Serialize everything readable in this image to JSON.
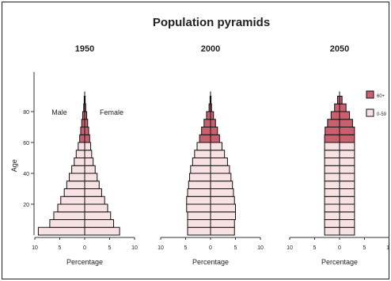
{
  "chart_data": {
    "type": "bar",
    "title": "Population pyramids",
    "ylabel": "Age",
    "age_ticks": [
      "20",
      "40",
      "60",
      "80"
    ],
    "x_ticks": [
      "10",
      "5",
      "0",
      "5",
      "10"
    ],
    "xlim": [
      -10,
      10
    ],
    "age_group_years": 5,
    "label_male": "Male",
    "label_female": "Female",
    "legend": [
      {
        "name": "60+",
        "color": "#c9606f"
      },
      {
        "name": "0-59",
        "color": "#f7e1e3"
      }
    ],
    "panels": [
      {
        "title": "1950",
        "xlabel": "Percentage",
        "age_groups_start": [
          0,
          5,
          10,
          15,
          20,
          25,
          30,
          35,
          40,
          45,
          50,
          55,
          60,
          65,
          70,
          75,
          80,
          85
        ],
        "male": [
          9.3,
          7.0,
          6.2,
          5.4,
          4.8,
          4.1,
          3.6,
          3.1,
          2.6,
          2.1,
          1.7,
          1.3,
          1.0,
          0.8,
          0.6,
          0.4,
          0.2,
          0.1
        ],
        "female": [
          7.0,
          5.8,
          5.2,
          4.6,
          4.0,
          3.4,
          2.9,
          2.5,
          2.1,
          1.7,
          1.4,
          1.2,
          1.0,
          0.8,
          0.6,
          0.4,
          0.2,
          0.1
        ]
      },
      {
        "title": "2000",
        "xlabel": "Percentage",
        "age_groups_start": [
          0,
          5,
          10,
          15,
          20,
          25,
          30,
          35,
          40,
          45,
          50,
          55,
          60,
          65,
          70,
          75,
          80,
          85
        ],
        "male": [
          4.6,
          4.6,
          4.6,
          4.8,
          4.8,
          4.6,
          4.4,
          4.2,
          4.0,
          3.6,
          3.2,
          2.7,
          2.2,
          1.8,
          1.3,
          0.8,
          0.3,
          0.1
        ],
        "female": [
          4.8,
          4.8,
          5.0,
          5.0,
          4.8,
          4.6,
          4.4,
          4.1,
          3.8,
          3.4,
          2.8,
          2.3,
          1.8,
          1.4,
          1.0,
          0.6,
          0.2,
          0.1
        ]
      },
      {
        "title": "2050",
        "xlabel": "Percentage",
        "age_groups_start": [
          0,
          5,
          10,
          15,
          20,
          25,
          30,
          35,
          40,
          45,
          50,
          55,
          60,
          65,
          70,
          75,
          80,
          85
        ],
        "male": [
          3.0,
          3.0,
          3.0,
          3.0,
          3.0,
          3.0,
          3.0,
          3.0,
          3.0,
          3.0,
          3.0,
          3.0,
          3.0,
          2.9,
          2.4,
          1.7,
          1.0,
          0.4
        ],
        "female": [
          3.0,
          3.0,
          3.0,
          3.0,
          3.0,
          3.0,
          3.0,
          3.0,
          3.0,
          3.0,
          3.0,
          3.0,
          3.0,
          3.0,
          2.6,
          2.0,
          1.3,
          0.5
        ]
      }
    ]
  }
}
